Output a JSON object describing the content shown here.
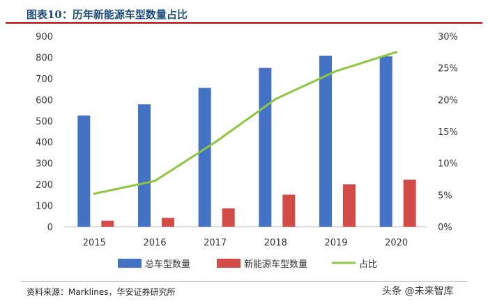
{
  "title": "图表10：历年新能源车型数量占比",
  "source": "资料来源：Marklines，华安证券研究所",
  "watermark": "头条 @未来智库",
  "colors": {
    "total": "#4472c4",
    "nev": "#d24b47",
    "share": "#8dc640",
    "title": "#1f4e79"
  },
  "chart_data": {
    "type": "bar",
    "categories": [
      "2015",
      "2016",
      "2017",
      "2018",
      "2019",
      "2020"
    ],
    "series": [
      {
        "name": "总车型数量",
        "type": "bar",
        "axis": "left",
        "values": [
          525,
          578,
          656,
          750,
          808,
          805
        ]
      },
      {
        "name": "新能源车型数量",
        "type": "bar",
        "axis": "left",
        "values": [
          28,
          42,
          87,
          152,
          200,
          222
        ]
      },
      {
        "name": "占比",
        "type": "line",
        "axis": "right",
        "values": [
          0.052,
          0.072,
          0.133,
          0.201,
          0.245,
          0.275
        ]
      }
    ],
    "yleft": {
      "min": 0,
      "max": 900,
      "ticks": [
        0,
        100,
        200,
        300,
        400,
        500,
        600,
        700,
        800,
        900
      ]
    },
    "yright": {
      "min": 0,
      "max": 0.3,
      "ticks": [
        "0%",
        "5%",
        "10%",
        "15%",
        "20%",
        "25%",
        "30%"
      ]
    },
    "legend": "bottom",
    "grid": false
  }
}
